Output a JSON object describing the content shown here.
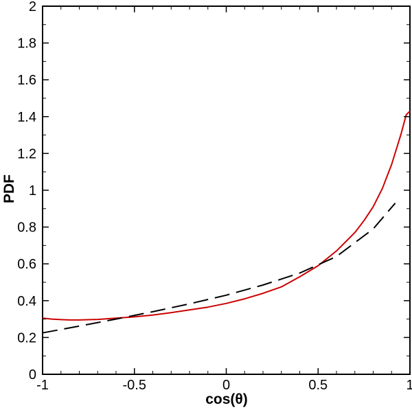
{
  "chart_data": {
    "type": "line",
    "title": "",
    "xlabel": "cos(θ)",
    "ylabel": "PDF",
    "xlim": [
      -1,
      1
    ],
    "ylim": [
      0,
      2
    ],
    "x_ticks": [
      -1,
      -0.5,
      0,
      0.5,
      1
    ],
    "x_tick_labels": [
      "-1",
      "-0.5",
      "0",
      "0.5",
      "1"
    ],
    "y_ticks": [
      0,
      0.2,
      0.4,
      0.6,
      0.8,
      1,
      1.2,
      1.4,
      1.6,
      1.8,
      2
    ],
    "y_tick_labels": [
      "0",
      "0.2",
      "0.4",
      "0.6",
      "0.8",
      "1",
      "1.2",
      "1.4",
      "1.6",
      "1.8",
      "2"
    ],
    "grid": false,
    "legend": "none",
    "series": [
      {
        "color": "#cc0000",
        "style": "solid",
        "x": [
          -1,
          -0.95,
          -0.9,
          -0.85,
          -0.8,
          -0.7,
          -0.6,
          -0.5,
          -0.4,
          -0.3,
          -0.2,
          -0.1,
          0,
          0.1,
          0.2,
          0.3,
          0.4,
          0.5,
          0.6,
          0.7,
          0.75,
          0.8,
          0.85,
          0.9,
          0.95,
          0.98,
          1
        ],
        "y": [
          0.305,
          0.3,
          0.297,
          0.295,
          0.295,
          0.298,
          0.305,
          0.312,
          0.322,
          0.335,
          0.35,
          0.365,
          0.385,
          0.41,
          0.44,
          0.475,
          0.53,
          0.59,
          0.67,
          0.77,
          0.835,
          0.91,
          1.01,
          1.14,
          1.3,
          1.41,
          1.43
        ]
      },
      {
        "color": "#000000",
        "style": "dashed",
        "x": [
          -1,
          -0.8,
          -0.6,
          -0.4,
          -0.2,
          0,
          0.2,
          0.4,
          0.6,
          0.8,
          0.92
        ],
        "y": [
          0.225,
          0.262,
          0.3,
          0.34,
          0.383,
          0.43,
          0.485,
          0.55,
          0.64,
          0.79,
          0.93
        ]
      }
    ]
  }
}
